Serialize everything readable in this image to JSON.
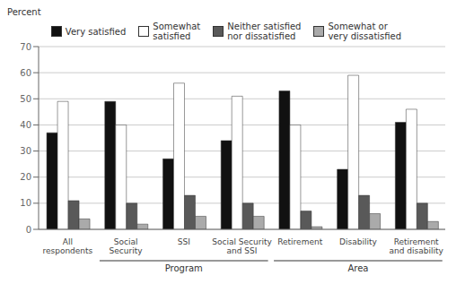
{
  "chart_data": {
    "type": "bar",
    "ylabel": "Percent",
    "categories": [
      "All\nrespondents",
      "Social\nSecurity",
      "SSI",
      "Social Security\nand SSI",
      "Retirement",
      "Disability",
      "Retirement\nand disability"
    ],
    "series": [
      {
        "name": "Very satisfied",
        "color": "#111111",
        "values": [
          37,
          49,
          27,
          34,
          53,
          23,
          41
        ]
      },
      {
        "name": "Somewhat\nsatisfied",
        "color": "#ffffff",
        "values": [
          49,
          40,
          56,
          51,
          40,
          59,
          46
        ]
      },
      {
        "name": "Neither satisfied\nnor dissatisfied",
        "color": "#595959",
        "values": [
          11,
          10,
          13,
          10,
          7,
          13,
          10
        ]
      },
      {
        "name": "Somewhat or\nvery dissatisfied",
        "color": "#aaaaaa",
        "values": [
          4,
          2,
          5,
          5,
          1,
          6,
          3
        ]
      }
    ],
    "groups": [
      {
        "label": "Program",
        "categories": [
          "Social\nSecurity",
          "SSI",
          "Social Security\nand SSI"
        ]
      },
      {
        "label": "Area",
        "categories": [
          "Retirement",
          "Disability",
          "Retirement\nand disability"
        ]
      }
    ],
    "ylim": [
      0,
      70
    ],
    "yticks": [
      0,
      10,
      20,
      30,
      40,
      50,
      60,
      70
    ],
    "grid": true,
    "legend": "top"
  }
}
